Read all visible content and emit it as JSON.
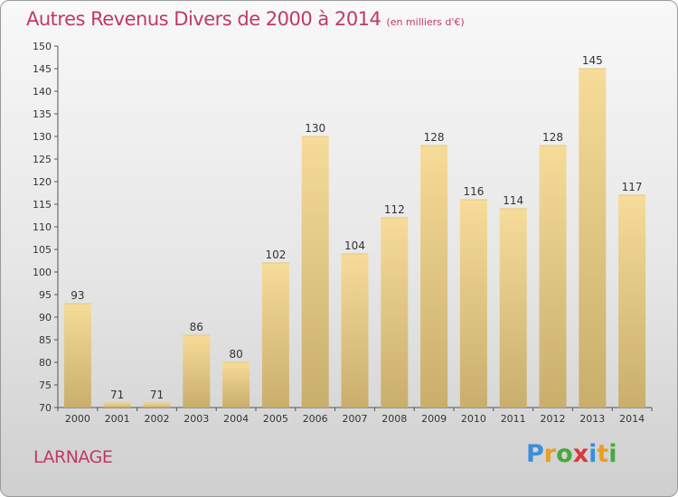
{
  "header": {
    "title": "Autres Revenus Divers de 2000 à 2014",
    "subtitle": "(en milliers d'€)"
  },
  "footer": {
    "commune": "LARNAGE",
    "logo_letters": [
      "P",
      "r",
      "o",
      "x",
      "i",
      "t",
      "i"
    ],
    "logo_colors": [
      "#3a8fd8",
      "#e8a020",
      "#4aa83c",
      "#d83a3a",
      "#3a8fd8",
      "#e8a020",
      "#4aa83c"
    ]
  },
  "colors": {
    "bar_light": "#f6dc98",
    "bar_dark": "#c9ae6c",
    "title": "#c0386a",
    "text": "#333333"
  },
  "chart_data": {
    "type": "bar",
    "categories": [
      "2000",
      "2001",
      "2002",
      "2003",
      "2004",
      "2005",
      "2006",
      "2007",
      "2008",
      "2009",
      "2010",
      "2011",
      "2012",
      "2013",
      "2014"
    ],
    "values": [
      93,
      71,
      71,
      86,
      80,
      102,
      130,
      104,
      112,
      128,
      116,
      114,
      128,
      145,
      117
    ],
    "ylim": [
      70,
      150
    ],
    "yticks": [
      70,
      75,
      80,
      85,
      90,
      95,
      100,
      105,
      110,
      115,
      120,
      125,
      130,
      135,
      140,
      145,
      150
    ],
    "grid": false
  }
}
